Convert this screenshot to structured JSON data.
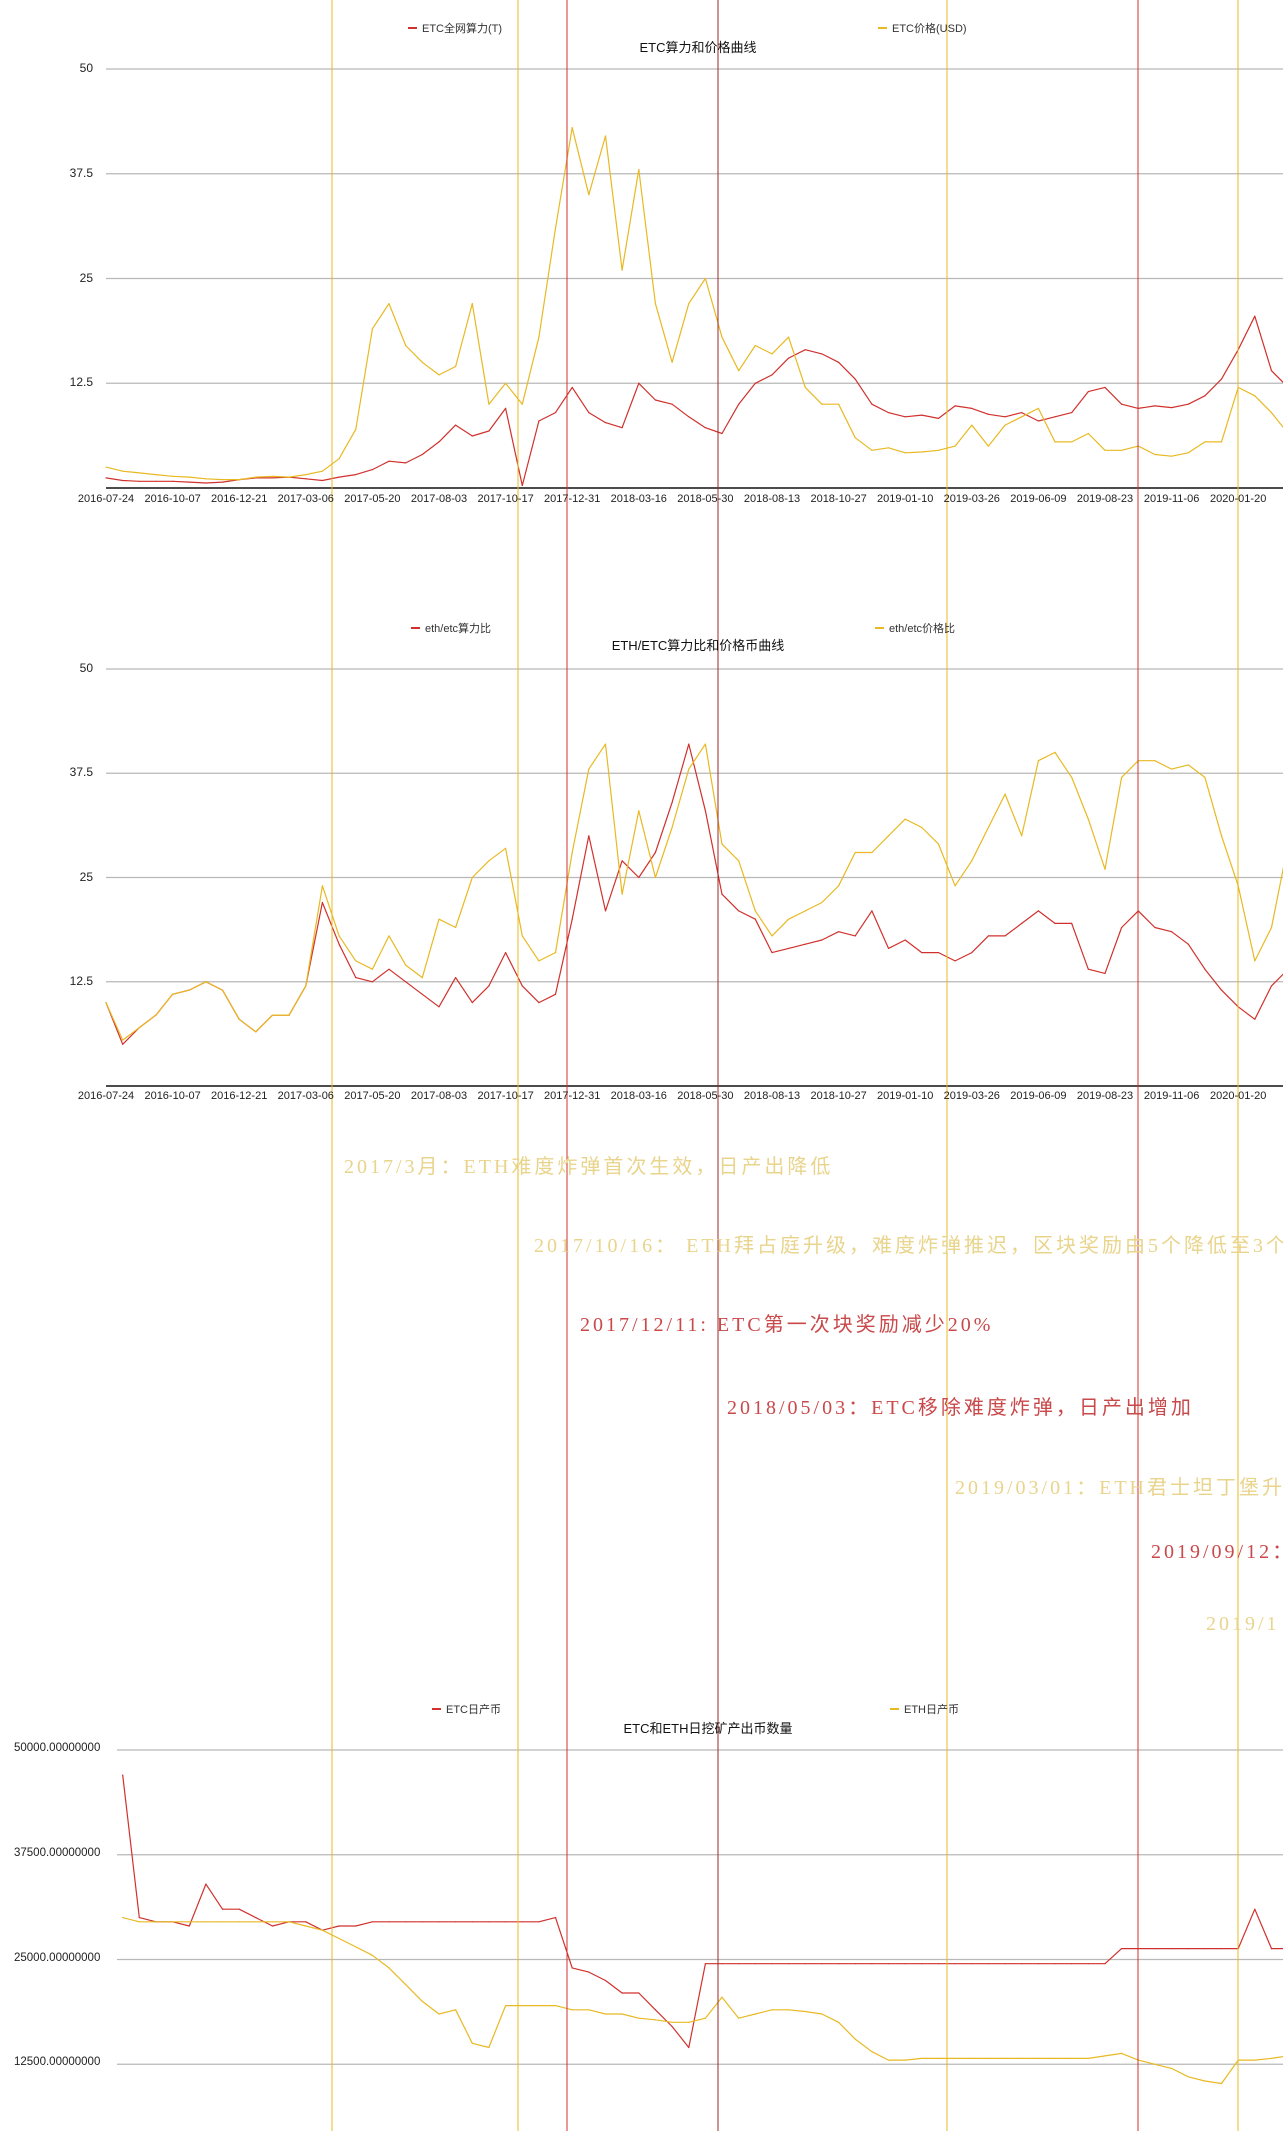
{
  "colors": {
    "red": "#d0312d",
    "yellow": "#e8b923",
    "darkred": "#9e2a2a",
    "grid": "#b8b8b8",
    "anno_yellow": "#e9d48c",
    "anno_red": "#c9484a"
  },
  "x_axis": {
    "start": "2016-07-24",
    "step_days": 18.75,
    "tick_labels": [
      "2016-07-24",
      "2016-10-07",
      "2016-12-21",
      "2017-03-06",
      "2017-05-20",
      "2017-08-03",
      "2017-10-17",
      "2017-12-31",
      "2018-03-16",
      "2018-05-30",
      "2018-08-13",
      "2018-10-27",
      "2019-01-10",
      "2019-03-26",
      "2019-06-09",
      "2019-08-23",
      "2019-11-06",
      "2020-01-20"
    ]
  },
  "event_lines": [
    {
      "date": "2017/3",
      "color": "yellow"
    },
    {
      "date": "2017/10/16",
      "color": "yellow"
    },
    {
      "date": "2017/12/11",
      "color": "red"
    },
    {
      "date": "2018/05/03",
      "color": "darkred"
    },
    {
      "date": "2019/03/01",
      "color": "yellow"
    },
    {
      "date": "2019/09/12",
      "color": "red"
    },
    {
      "date": "2019/12",
      "color": "yellow"
    }
  ],
  "annotations": [
    {
      "text": "2017/3月：ETH难度炸弹首次生效，日产出降低",
      "color": "anno_yellow"
    },
    {
      "text": "2017/10/16： ETH拜占庭升级，难度炸弹推迟，区块奖励由5个降低至3个",
      "color": "anno_yellow"
    },
    {
      "text": "2017/12/11: ETC第一次块奖励减少20%",
      "color": "anno_red"
    },
    {
      "text": "2018/05/03：ETC移除难度炸弹，日产出增加",
      "color": "anno_red"
    },
    {
      "text": "2019/03/01：ETH君士坦丁堡升",
      "color": "anno_yellow"
    },
    {
      "text": "2019/09/12：",
      "color": "anno_red"
    },
    {
      "text": "2019/1",
      "color": "anno_yellow"
    }
  ],
  "chart_data": [
    {
      "type": "line",
      "title": "ETC算力和价格曲线",
      "ylim": [
        0,
        50
      ],
      "y_ticks": [
        "50",
        "37.5",
        "25",
        "12.5"
      ],
      "legend_placement": "top",
      "series": [
        {
          "name": "ETC全网算力(T)",
          "color": "red",
          "values": [
            1.2,
            0.9,
            0.8,
            0.8,
            0.8,
            0.7,
            0.6,
            0.7,
            1.0,
            1.2,
            1.2,
            1.3,
            1.1,
            0.9,
            1.3,
            1.6,
            2.2,
            3.2,
            3.0,
            4.0,
            5.5,
            7.5,
            6.2,
            6.8,
            9.5,
            0.3,
            8.0,
            9.0,
            12.0,
            9.0,
            7.8,
            7.2,
            12.5,
            10.5,
            10.0,
            8.5,
            7.2,
            6.5,
            10.0,
            12.5,
            13.5,
            15.5,
            16.5,
            16.0,
            15.0,
            13.0,
            10.0,
            9.0,
            8.5,
            8.7,
            8.3,
            9.8,
            9.5,
            8.8,
            8.5,
            9.0,
            8.0,
            8.5,
            9.0,
            11.5,
            12.0,
            10.0,
            9.5,
            9.8,
            9.6,
            10.0,
            11.0,
            13.0,
            16.5,
            20.5,
            14.0,
            12.0
          ]
        },
        {
          "name": "ETC价格(USD)",
          "color": "yellow",
          "values": [
            2.5,
            2.0,
            1.8,
            1.6,
            1.4,
            1.3,
            1.1,
            1.0,
            1.0,
            1.3,
            1.4,
            1.3,
            1.6,
            2.0,
            3.5,
            7.0,
            19,
            22,
            17,
            15,
            13.5,
            14.5,
            22,
            10,
            12.5,
            10,
            18,
            31,
            43,
            35,
            42,
            26,
            38,
            22,
            15,
            22,
            25,
            18,
            14,
            17,
            16,
            18,
            12,
            10,
            10,
            6,
            4.5,
            4.8,
            4.2,
            4.3,
            4.5,
            5,
            7.5,
            5,
            7.5,
            8.5,
            9.5,
            5.5,
            5.5,
            6.5,
            4.5,
            4.5,
            5,
            4,
            3.8,
            4.2,
            5.5,
            5.5,
            12,
            11,
            9,
            6.5
          ]
        }
      ]
    },
    {
      "type": "line",
      "title": "ETH/ETC算力比和价格币曲线",
      "ylim": [
        0,
        50
      ],
      "y_ticks": [
        "50",
        "37.5",
        "25",
        "12.5"
      ],
      "legend_placement": "top",
      "series": [
        {
          "name": "eth/etc算力比",
          "color": "red",
          "values": [
            10,
            5,
            7,
            8.5,
            11,
            11.5,
            12.5,
            11.5,
            8,
            6.5,
            8.5,
            8.5,
            12,
            22,
            17,
            13,
            12.5,
            14,
            12.5,
            11,
            9.5,
            13,
            10,
            12,
            16,
            12,
            10,
            11,
            20,
            30,
            21,
            27,
            25,
            28,
            34,
            41,
            33,
            23,
            21,
            20,
            16,
            16.5,
            17,
            17.5,
            18.5,
            18,
            21,
            16.5,
            17.5,
            16,
            16,
            15,
            16,
            18,
            18,
            19.5,
            21,
            19.5,
            19.5,
            14,
            13.5,
            19,
            21,
            19,
            18.5,
            17,
            14,
            11.5,
            9.5,
            8,
            12,
            14
          ]
        },
        {
          "name": "eth/etc价格比",
          "color": "yellow",
          "values": [
            10,
            5.5,
            7,
            8.5,
            11,
            11.5,
            12.5,
            11.5,
            8,
            6.5,
            8.5,
            8.5,
            12,
            24,
            18,
            15,
            14,
            18,
            14.5,
            13,
            20,
            19,
            25,
            27,
            28.5,
            18,
            15,
            16,
            28,
            38,
            41,
            23,
            33,
            25,
            31,
            38,
            41,
            29,
            27,
            21,
            18,
            20,
            21,
            22,
            24,
            28,
            28,
            30,
            32,
            31,
            29,
            24,
            27,
            31,
            35,
            30,
            39,
            40,
            37,
            32,
            26,
            37,
            39,
            39,
            38,
            38.5,
            37,
            30,
            24,
            15,
            19,
            29
          ]
        }
      ]
    },
    {
      "type": "line",
      "title": "ETC和ETH日挖矿产出币数量",
      "ylim": [
        0,
        50000
      ],
      "y_ticks": [
        "50000.00000000",
        "37500.00000000",
        "25000.00000000",
        "12500.00000000"
      ],
      "legend_placement": "top",
      "series": [
        {
          "name": "ETC日产币",
          "color": "red",
          "values": [
            null,
            47000,
            30000,
            29500,
            29500,
            29000,
            34000,
            31000,
            31000,
            30000,
            29000,
            29500,
            29500,
            28500,
            29000,
            29000,
            29500,
            29500,
            29500,
            29500,
            29500,
            29500,
            29500,
            29500,
            29500,
            29500,
            29500,
            30000,
            24000,
            23500,
            22500,
            21000,
            21000,
            19000,
            17000,
            14500,
            24500,
            24500,
            24500,
            24500,
            24500,
            24500,
            24500,
            24500,
            24500,
            24500,
            24500,
            24500,
            24500,
            24500,
            24500,
            24500,
            24500,
            24500,
            24500,
            24500,
            24500,
            24500,
            24500,
            24500,
            24500,
            26300,
            26300,
            26300,
            26300,
            26300,
            26300,
            26300,
            26300,
            31000,
            26300,
            26300
          ]
        },
        {
          "name": "ETH日产币",
          "color": "yellow",
          "values": [
            null,
            30000,
            29500,
            29500,
            29500,
            29500,
            29500,
            29500,
            29500,
            29500,
            29500,
            29500,
            29000,
            28500,
            27500,
            26500,
            25500,
            24000,
            22000,
            20000,
            18500,
            19000,
            15000,
            14500,
            19500,
            19500,
            19500,
            19500,
            19000,
            19000,
            18500,
            18500,
            18000,
            17800,
            17500,
            17500,
            18000,
            20500,
            18000,
            18500,
            19000,
            19000,
            18800,
            18500,
            17500,
            15500,
            14000,
            13000,
            13000,
            13200,
            13200,
            13200,
            13200,
            13200,
            13200,
            13200,
            13200,
            13200,
            13200,
            13200,
            13500,
            13800,
            13000,
            12500,
            12000,
            11000,
            10500,
            10200,
            13000,
            13000,
            13200,
            13500
          ]
        }
      ]
    }
  ]
}
